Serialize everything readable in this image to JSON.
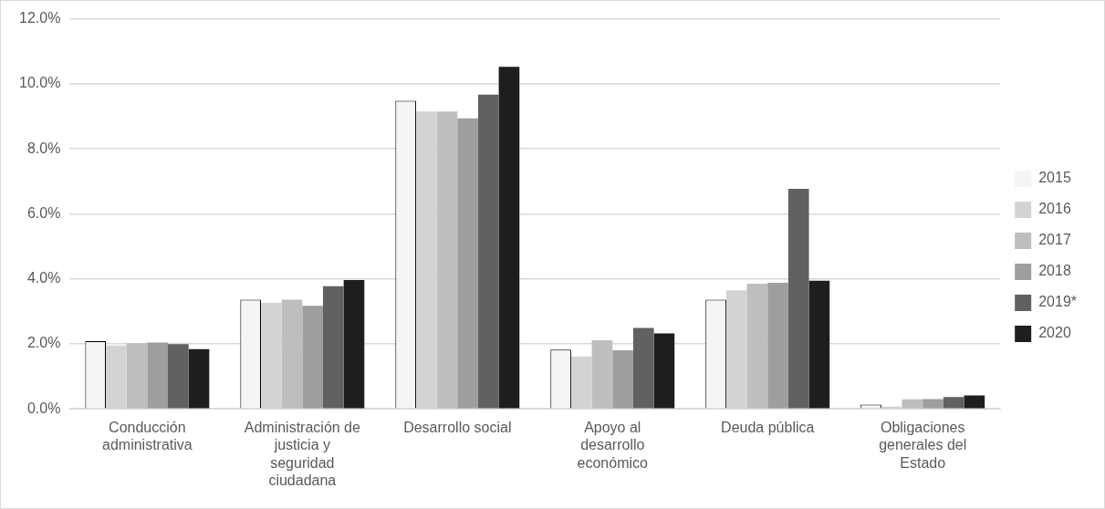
{
  "chart_data": {
    "type": "bar",
    "categories": [
      "Conducción administrativa",
      "Administración de justicia y seguridad ciudadana",
      "Desarrollo social",
      "Apoyo al desarrollo económico",
      "Deuda pública",
      "Obligaciones generales del Estado"
    ],
    "series": [
      {
        "name": "2015",
        "color": "#f5f5f5",
        "values": [
          2.08,
          3.36,
          9.48,
          1.82,
          3.36,
          0.13
        ]
      },
      {
        "name": "2016",
        "color": "#d3d3d3",
        "values": [
          1.95,
          3.26,
          9.15,
          1.61,
          3.65,
          0.07
        ]
      },
      {
        "name": "2017",
        "color": "#bebebe",
        "values": [
          2.02,
          3.36,
          9.15,
          2.11,
          3.85,
          0.29
        ]
      },
      {
        "name": "2018",
        "color": "#9e9e9e",
        "values": [
          2.04,
          3.17,
          8.94,
          1.8,
          3.88,
          0.3
        ]
      },
      {
        "name": "2019*",
        "color": "#616161",
        "values": [
          1.99,
          3.77,
          9.67,
          2.49,
          6.77,
          0.36
        ]
      },
      {
        "name": "2020",
        "color": "#1e1e1e",
        "values": [
          1.84,
          3.96,
          10.52,
          2.32,
          3.94,
          0.41
        ]
      }
    ],
    "ylim": [
      0,
      12
    ],
    "yticks": [
      {
        "value": 0,
        "label": "0.0%"
      },
      {
        "value": 2,
        "label": "2.0%"
      },
      {
        "value": 4,
        "label": "4.0%"
      },
      {
        "value": 6,
        "label": "6.0%"
      },
      {
        "value": 8,
        "label": "8.0%"
      },
      {
        "value": 10,
        "label": "10.0%"
      },
      {
        "value": 12,
        "label": "12.0%"
      }
    ],
    "grid": "y",
    "legend": "right"
  }
}
